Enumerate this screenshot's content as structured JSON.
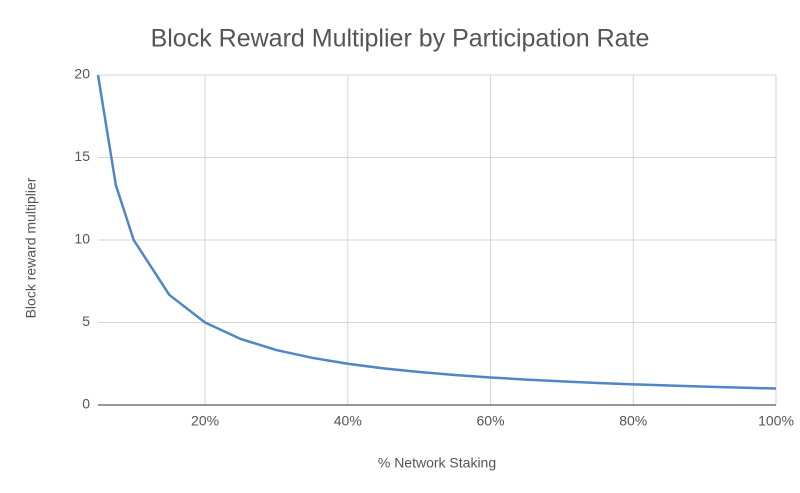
{
  "chart_data": {
    "type": "line",
    "title": "Block Reward Multiplier by Participation Rate",
    "x_label": "% Network Staking",
    "y_label": "Block reward multiplier",
    "x": [
      5,
      7.5,
      10,
      15,
      20,
      25,
      30,
      35,
      40,
      45,
      50,
      55,
      60,
      65,
      70,
      75,
      80,
      85,
      90,
      95,
      100
    ],
    "series": [
      {
        "name": "Block reward multiplier",
        "color": "#4f86c6",
        "values": [
          20,
          13.33,
          10,
          6.67,
          5,
          4,
          3.33,
          2.86,
          2.5,
          2.22,
          2,
          1.82,
          1.67,
          1.54,
          1.43,
          1.33,
          1.25,
          1.18,
          1.11,
          1.05,
          1
        ]
      }
    ],
    "xlim": [
      5,
      100
    ],
    "xticks": [
      {
        "value": 20,
        "label": "20%"
      },
      {
        "value": 40,
        "label": "40%"
      },
      {
        "value": 60,
        "label": "60%"
      },
      {
        "value": 80,
        "label": "80%"
      },
      {
        "value": 100,
        "label": "100%"
      }
    ],
    "ylim": [
      0,
      20
    ],
    "yticks": [
      0,
      5,
      10,
      15,
      20
    ],
    "grid": true
  }
}
